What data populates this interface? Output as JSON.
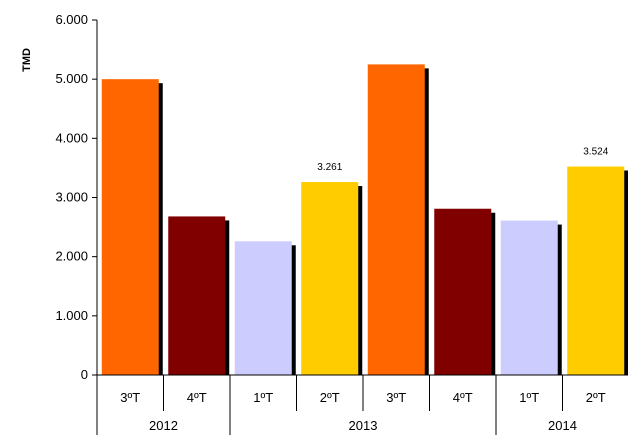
{
  "chart_data": {
    "type": "bar",
    "ylabel": "TMD",
    "ylim": [
      0,
      6000
    ],
    "y_ticks": [
      0,
      1000,
      2000,
      3000,
      4000,
      5000,
      6000
    ],
    "y_tick_labels": [
      "0",
      "1.000",
      "2.000",
      "3.000",
      "4.000",
      "5.000",
      "6.000"
    ],
    "categories": [
      "3ºT",
      "4ºT",
      "1ºT",
      "2ºT",
      "3ºT",
      "4ºT",
      "1ºT",
      "2ºT"
    ],
    "groups": [
      {
        "label": "2012",
        "span": 2
      },
      {
        "label": "2013",
        "span": 4
      },
      {
        "label": "2014",
        "span": 2
      }
    ],
    "values": [
      5000,
      2680,
      2260,
      3261,
      5250,
      2810,
      2610,
      3524
    ],
    "data_labels": [
      "",
      "",
      "",
      "3.261",
      "",
      "",
      "",
      "3.524"
    ],
    "colors": [
      "#FF6600",
      "#800000",
      "#CCCCFF",
      "#FFCC00",
      "#FF6600",
      "#800000",
      "#CCCCFF",
      "#FFCC00"
    ],
    "grid": false,
    "legend": "none"
  }
}
